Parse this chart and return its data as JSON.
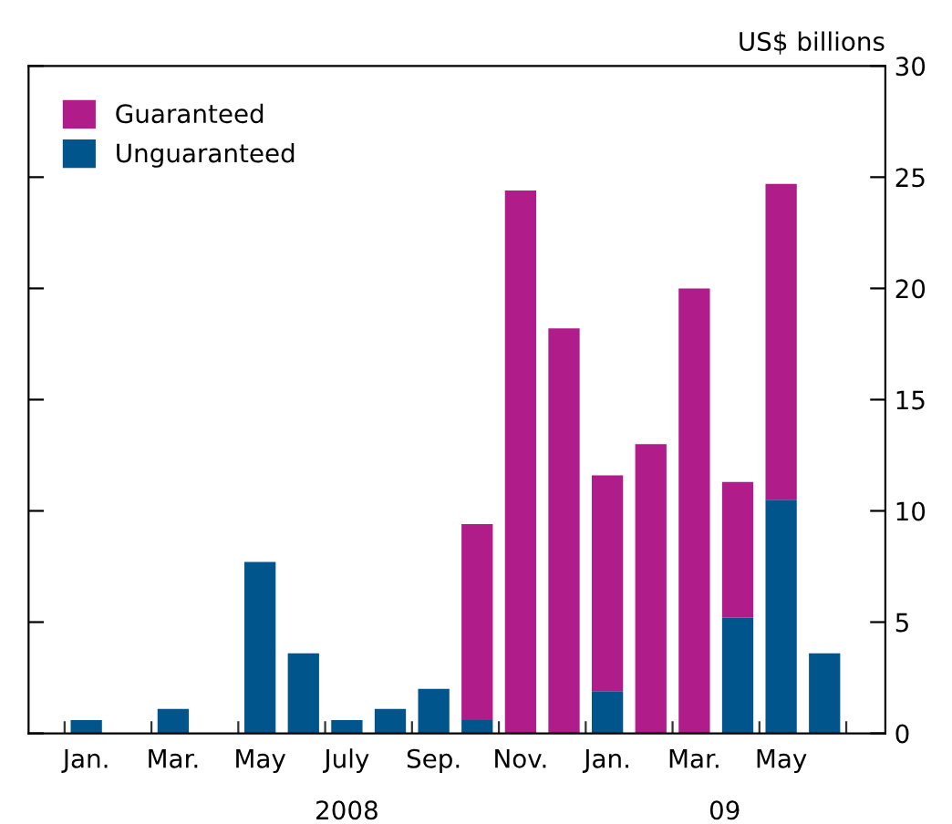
{
  "chart_data": {
    "type": "bar",
    "stacked": true,
    "ylabel": "US$ billions",
    "categories": [
      "Jan.",
      null,
      "Mar.",
      null,
      "May",
      null,
      "July",
      null,
      "Sep.",
      null,
      "Nov.",
      null,
      "Jan.",
      null,
      "Mar.",
      null,
      "May",
      null
    ],
    "series": [
      {
        "name": "Unguaranteed",
        "color": "#00558c",
        "values": [
          0.6,
          0,
          1.1,
          0,
          7.7,
          3.6,
          0.6,
          1.1,
          2.0,
          0.6,
          0,
          0,
          1.9,
          0,
          0,
          5.2,
          10.5,
          3.6
        ]
      },
      {
        "name": "Guaranteed",
        "color": "#b01c8a",
        "values": [
          0,
          0,
          0,
          0,
          0,
          0,
          0,
          0,
          0,
          8.8,
          24.4,
          18.2,
          9.7,
          13.0,
          20.0,
          6.1,
          14.2,
          0
        ]
      }
    ],
    "ylim": [
      0,
      30
    ],
    "yticks": [
      0,
      5,
      10,
      15,
      20,
      25,
      30
    ],
    "grid": false,
    "legend": "top left",
    "annotations": [
      "2008",
      "09"
    ]
  }
}
